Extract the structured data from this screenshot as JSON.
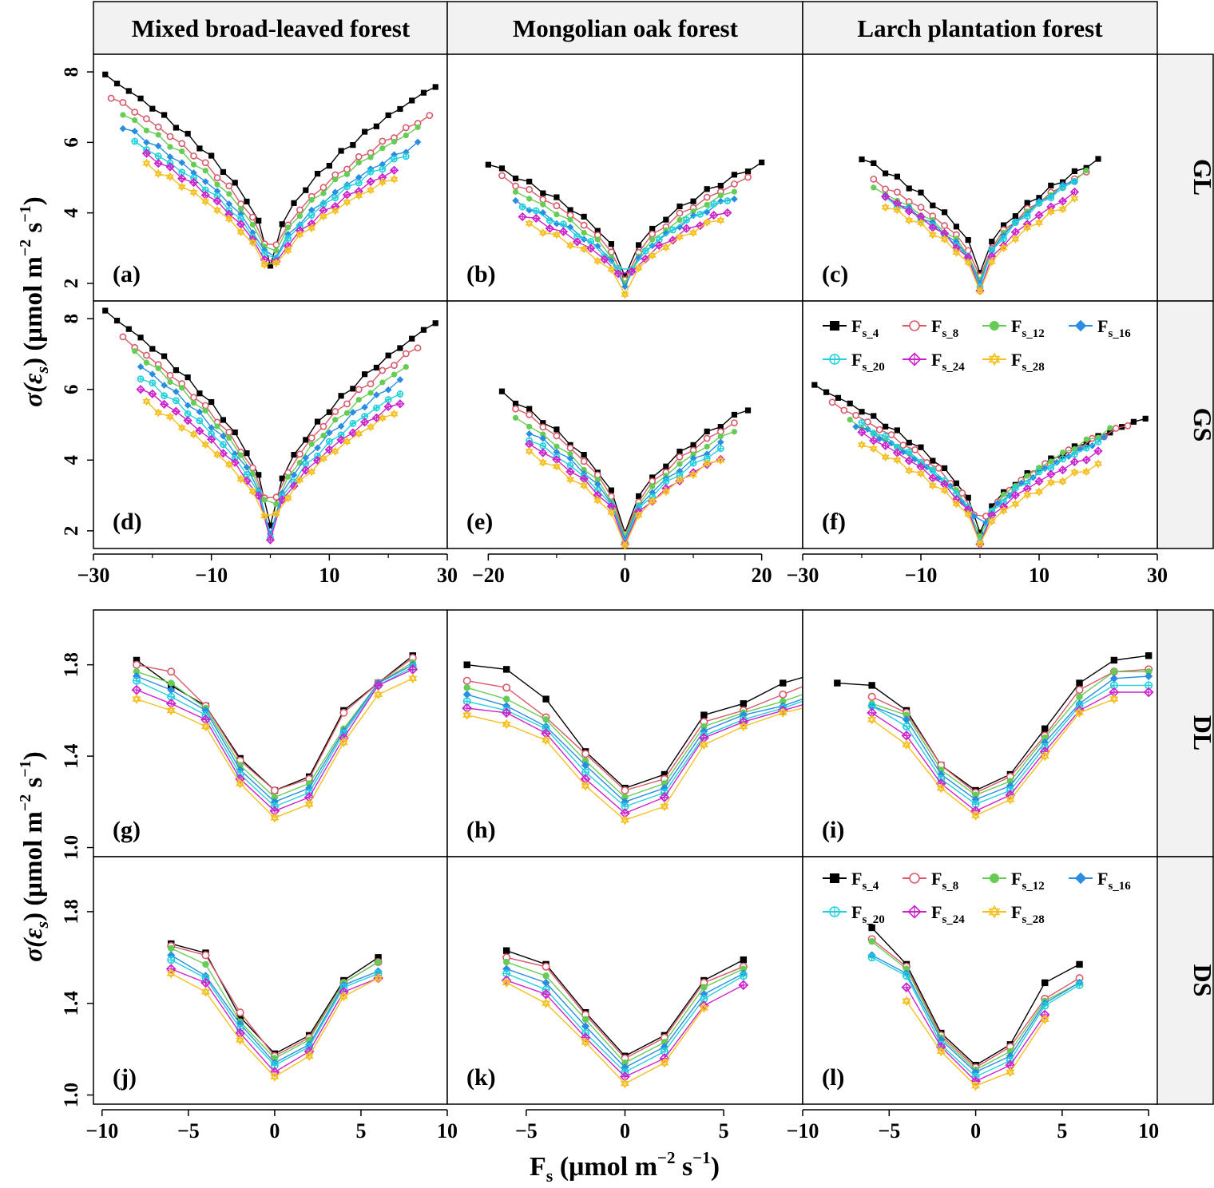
{
  "figure": {
    "column_titles": [
      "Mixed broad-leaved forest",
      "Mongolian oak forest",
      "Larch plantation forest"
    ],
    "row_strips": [
      "GL",
      "GS",
      "DL",
      "DS"
    ],
    "ylabel_top_main": "σ(ε",
    "ylabel_top_sub": "s",
    "ylabel_top_rest": ")  (μmol m",
    "ylabel_top_exp1": "−2",
    "ylabel_top_mid": " s",
    "ylabel_top_exp2": "−1",
    "ylabel_top_close": ")",
    "ylabel_bottom_main": "σ(ε",
    "ylabel_bottom_sub": "s",
    "ylabel_bottom_rest": ") (μmol m",
    "ylabel_bottom_exp1": "−2",
    "ylabel_bottom_mid": " s",
    "ylabel_bottom_exp2": "−1",
    "ylabel_bottom_close": ")",
    "xlabel_main": "F",
    "xlabel_sub": "s",
    "xlabel_rest": " (μmol m",
    "xlabel_exp1": "−2",
    "xlabel_mid": " s",
    "xlabel_exp2": "−1",
    "xlabel_close": ")"
  },
  "chart_data": {
    "type": "line",
    "series_styles": [
      {
        "name": "Fs_4",
        "label_main": "F",
        "label_sub": "s_4",
        "color": "#000000",
        "marker": "square"
      },
      {
        "name": "Fs_8",
        "label_main": "F",
        "label_sub": "s_8",
        "color": "#d95a6a",
        "marker": "circle-open"
      },
      {
        "name": "Fs_12",
        "label_main": "F",
        "label_sub": "s_12",
        "color": "#66cc55",
        "marker": "circle"
      },
      {
        "name": "Fs_16",
        "label_main": "F",
        "label_sub": "s_16",
        "color": "#2a8de0",
        "marker": "diamond"
      },
      {
        "name": "Fs_20",
        "label_main": "F",
        "label_sub": "s_20",
        "color": "#22d0dd",
        "marker": "circle-cross"
      },
      {
        "name": "Fs_24",
        "label_main": "F",
        "label_sub": "s_24",
        "color": "#cc22cc",
        "marker": "diamond-cross"
      },
      {
        "name": "Fs_28",
        "label_main": "F",
        "label_sub": "s_28",
        "color": "#f5c020",
        "marker": "star"
      }
    ],
    "axes": {
      "g1": {
        "xlim": [
          -30,
          30
        ],
        "ticks": [
          -30,
          -10,
          10,
          30
        ]
      },
      "g2": {
        "xlim": [
          -26,
          26
        ],
        "ticks": [
          -20,
          0,
          20
        ]
      },
      "g3": {
        "xlim": [
          -30,
          30
        ],
        "ticks": [
          -30,
          -10,
          10,
          30
        ]
      },
      "g_ylim": [
        1.5,
        8.5
      ],
      "g_yticks": [
        2,
        4,
        6,
        8
      ],
      "d1": {
        "xlim": [
          -10.5,
          10
        ],
        "ticks": [
          -10,
          -5,
          0,
          5,
          10
        ]
      },
      "d2": {
        "xlim": [
          -9,
          9
        ],
        "ticks": [
          -5,
          0,
          5
        ]
      },
      "d3": {
        "xlim": [
          -10,
          10.5
        ],
        "ticks": [
          -10,
          -5,
          0,
          5,
          10
        ]
      },
      "d_ylim": [
        0.96,
        2.04
      ],
      "d_yticks": [
        1.0,
        1.4,
        1.8
      ]
    },
    "panels": [
      {
        "id": "a",
        "label": "(a)",
        "row": 0,
        "col": 0,
        "type": "g",
        "xmax": [
          28,
          27,
          25,
          25,
          23,
          21,
          21
        ],
        "left": [
          7.9,
          7.3,
          6.8,
          6.45,
          6.0,
          5.65,
          5.35
        ],
        "right": [
          7.6,
          6.75,
          6.4,
          5.95,
          5.65,
          5.2,
          5.0
        ],
        "min": [
          2.5,
          2.35,
          2.25,
          2.15,
          2.1,
          2.0,
          1.95
        ]
      },
      {
        "id": "b",
        "label": "(b)",
        "row": 0,
        "col": 1,
        "type": "g",
        "xmax": [
          20,
          18,
          16,
          16,
          15,
          15,
          14
        ],
        "left": [
          5.4,
          5.0,
          4.6,
          4.3,
          4.2,
          3.95,
          3.65
        ],
        "right": [
          5.4,
          5.0,
          4.65,
          4.45,
          4.4,
          4.05,
          3.85
        ],
        "min": [
          2.2,
          2.05,
          1.95,
          1.9,
          1.85,
          1.8,
          1.7
        ]
      },
      {
        "id": "c",
        "label": "(c)",
        "row": 0,
        "col": 2,
        "type": "g",
        "xmax": [
          20,
          18,
          18,
          16,
          16,
          16,
          16
        ],
        "left": [
          5.55,
          4.9,
          4.7,
          4.45,
          4.4,
          4.45,
          4.2
        ],
        "right": [
          5.5,
          5.15,
          5.15,
          4.95,
          4.9,
          4.55,
          4.35
        ],
        "min": [
          2.3,
          2.15,
          2.05,
          2.0,
          1.95,
          1.85,
          1.8
        ]
      },
      {
        "id": "d",
        "label": "(d)",
        "row": 1,
        "col": 0,
        "type": "g",
        "xmax": [
          28,
          25,
          23,
          22,
          22,
          22,
          21
        ],
        "left": [
          8.2,
          7.45,
          7.05,
          6.65,
          6.35,
          6.05,
          5.6
        ],
        "right": [
          7.9,
          7.2,
          6.65,
          6.25,
          5.9,
          5.65,
          5.35
        ],
        "min": [
          2.15,
          2.05,
          1.95,
          1.9,
          1.85,
          1.8,
          1.75
        ]
      },
      {
        "id": "e",
        "label": "(e)",
        "row": 1,
        "col": 1,
        "type": "g",
        "xmax": [
          18,
          16,
          16,
          14,
          14,
          14,
          14
        ],
        "left": [
          5.9,
          5.5,
          5.2,
          4.8,
          4.6,
          4.45,
          4.2
        ],
        "right": [
          5.45,
          5.05,
          4.85,
          4.45,
          4.3,
          4.05,
          4.05
        ],
        "min": [
          1.95,
          1.85,
          1.8,
          1.75,
          1.72,
          1.68,
          1.6
        ]
      },
      {
        "id": "f",
        "label": "(f)",
        "row": 1,
        "col": 2,
        "type": "g",
        "xmax": [
          28,
          25,
          22,
          21,
          20,
          20,
          20
        ],
        "left": [
          6.1,
          5.6,
          5.1,
          5.0,
          5.0,
          4.75,
          4.45
        ],
        "right": [
          5.2,
          5.0,
          4.85,
          4.6,
          4.5,
          4.2,
          3.85
        ],
        "min": [
          1.95,
          1.85,
          1.8,
          1.75,
          1.72,
          1.68,
          1.65
        ]
      },
      {
        "id": "g",
        "label": "(g)",
        "row": 2,
        "col": 0,
        "type": "d",
        "xs": [
          -8,
          -6,
          -4,
          -2,
          0,
          2,
          4,
          6,
          8
        ],
        "ys": [
          [
            1.82,
            1.71,
            1.62,
            1.39,
            1.25,
            1.31,
            1.6,
            1.72,
            1.84
          ],
          [
            1.8,
            1.77,
            1.62,
            1.38,
            1.25,
            1.3,
            1.59,
            1.72,
            1.83
          ],
          [
            1.77,
            1.72,
            1.61,
            1.36,
            1.22,
            1.28,
            1.52,
            1.72,
            1.81
          ],
          [
            1.75,
            1.69,
            1.6,
            1.34,
            1.2,
            1.26,
            1.51,
            1.72,
            1.8
          ],
          [
            1.73,
            1.66,
            1.58,
            1.32,
            1.18,
            1.24,
            1.5,
            1.71,
            1.79
          ],
          [
            1.69,
            1.63,
            1.56,
            1.3,
            1.16,
            1.22,
            1.48,
            1.71,
            1.78
          ],
          [
            1.65,
            1.6,
            1.53,
            1.28,
            1.13,
            1.19,
            1.46,
            1.67,
            1.74
          ]
        ]
      },
      {
        "id": "h",
        "label": "(h)",
        "row": 2,
        "col": 1,
        "type": "d",
        "xs": [
          -8,
          -6,
          -4,
          -2,
          0,
          2,
          4,
          6,
          8,
          10
        ],
        "ys": [
          [
            1.8,
            1.78,
            1.65,
            1.42,
            1.26,
            1.32,
            1.58,
            1.63,
            1.72,
            1.77
          ],
          [
            1.73,
            1.7,
            1.57,
            1.41,
            1.25,
            1.3,
            1.55,
            1.6,
            1.67,
            1.74
          ],
          [
            1.7,
            1.65,
            1.56,
            1.38,
            1.22,
            1.28,
            1.53,
            1.59,
            1.64,
            1.7
          ],
          [
            1.67,
            1.62,
            1.53,
            1.36,
            1.2,
            1.26,
            1.51,
            1.58,
            1.62,
            1.68
          ],
          [
            1.64,
            1.6,
            1.52,
            1.33,
            1.18,
            1.24,
            1.49,
            1.56,
            1.61,
            1.67
          ],
          [
            1.61,
            1.59,
            1.5,
            1.3,
            1.15,
            1.22,
            1.48,
            1.55,
            1.6,
            1.65
          ],
          [
            1.58,
            1.54,
            1.47,
            1.27,
            1.12,
            1.18,
            1.45,
            1.53,
            1.59,
            1.63
          ]
        ]
      },
      {
        "id": "i",
        "label": "(i)",
        "row": 2,
        "col": 2,
        "type": "d",
        "xs": [
          -8,
          -6,
          -4,
          -2,
          0,
          2,
          4,
          6,
          8,
          10
        ],
        "ys": [
          [
            1.72,
            1.71,
            1.6,
            1.36,
            1.25,
            1.32,
            1.52,
            1.72,
            1.82,
            1.84
          ],
          [
            null,
            1.66,
            1.59,
            1.36,
            1.24,
            1.31,
            1.49,
            1.69,
            1.77,
            1.78
          ],
          [
            null,
            1.63,
            1.58,
            1.34,
            1.23,
            1.29,
            1.48,
            1.66,
            1.77,
            1.77
          ],
          [
            null,
            1.62,
            1.56,
            1.32,
            1.21,
            1.27,
            1.46,
            1.63,
            1.74,
            1.75
          ],
          [
            null,
            1.62,
            1.53,
            1.3,
            1.19,
            1.25,
            1.44,
            1.62,
            1.71,
            1.71
          ],
          [
            null,
            1.59,
            1.49,
            1.28,
            1.16,
            1.23,
            1.42,
            1.6,
            1.68,
            1.68
          ],
          [
            null,
            1.56,
            1.45,
            1.26,
            1.14,
            1.21,
            1.4,
            1.59,
            1.65,
            null
          ]
        ]
      },
      {
        "id": "j",
        "label": "(j)",
        "row": 3,
        "col": 0,
        "type": "d",
        "xs": [
          -6,
          -4,
          -2,
          0,
          2,
          4,
          6
        ],
        "ys": [
          [
            1.66,
            1.62,
            1.34,
            1.18,
            1.26,
            1.5,
            1.6
          ],
          [
            1.65,
            1.61,
            1.36,
            1.17,
            1.25,
            1.49,
            1.58
          ],
          [
            1.64,
            1.57,
            1.32,
            1.16,
            1.24,
            1.49,
            1.58
          ],
          [
            1.61,
            1.52,
            1.31,
            1.14,
            1.22,
            1.48,
            1.54
          ],
          [
            1.59,
            1.51,
            1.29,
            1.13,
            1.21,
            1.47,
            1.53
          ],
          [
            1.55,
            1.49,
            1.27,
            1.1,
            1.19,
            1.45,
            1.51
          ],
          [
            1.53,
            1.45,
            1.24,
            1.08,
            1.17,
            1.43,
            1.51
          ]
        ]
      },
      {
        "id": "k",
        "label": "(k)",
        "row": 3,
        "col": 1,
        "type": "d",
        "xs": [
          -6,
          -4,
          -2,
          0,
          2,
          4,
          6
        ],
        "ys": [
          [
            1.63,
            1.57,
            1.36,
            1.17,
            1.26,
            1.5,
            1.59
          ],
          [
            1.6,
            1.56,
            1.35,
            1.16,
            1.25,
            1.49,
            1.56
          ],
          [
            1.58,
            1.52,
            1.33,
            1.14,
            1.23,
            1.47,
            1.55
          ],
          [
            1.55,
            1.49,
            1.3,
            1.12,
            1.21,
            1.44,
            1.53
          ],
          [
            1.53,
            1.46,
            1.27,
            1.1,
            1.19,
            1.42,
            1.52
          ],
          [
            1.5,
            1.44,
            1.25,
            1.08,
            1.16,
            1.39,
            1.48
          ],
          [
            1.49,
            1.4,
            1.23,
            1.05,
            1.14,
            1.38,
            null
          ]
        ]
      },
      {
        "id": "l",
        "label": "(l)",
        "row": 3,
        "col": 2,
        "type": "d",
        "xs": [
          -6,
          -4,
          -2,
          0,
          2,
          4,
          6
        ],
        "ys": [
          [
            1.73,
            1.57,
            1.27,
            1.13,
            1.22,
            1.49,
            1.57
          ],
          [
            1.68,
            1.56,
            1.26,
            1.12,
            1.21,
            1.42,
            1.51
          ],
          [
            1.67,
            1.55,
            1.25,
            1.11,
            1.19,
            1.41,
            1.49
          ],
          [
            1.61,
            1.53,
            1.24,
            1.1,
            1.17,
            1.4,
            1.49
          ],
          [
            1.6,
            1.52,
            1.22,
            1.08,
            1.15,
            1.39,
            1.48
          ],
          [
            null,
            1.47,
            1.21,
            1.06,
            1.13,
            1.35,
            null
          ],
          [
            null,
            1.41,
            1.19,
            1.04,
            1.1,
            1.33,
            null
          ]
        ]
      }
    ]
  }
}
